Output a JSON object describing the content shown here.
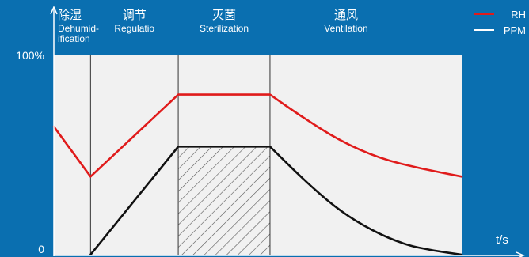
{
  "colors": {
    "background": "#0a6fb0",
    "plot_area": "#f1f1f1",
    "rh_line": "#e01b1b",
    "ppm_line": "#111111",
    "axis": "#ffffff",
    "divider": "#333333"
  },
  "chart_data": {
    "type": "line",
    "title": "",
    "xlabel": "t/s",
    "ylabel": "",
    "xlim": [
      0,
      100
    ],
    "ylim": [
      0,
      100
    ],
    "y_ticks": [
      "100%",
      "0"
    ],
    "grid": false,
    "legend_position": "top-right",
    "phases": [
      {
        "label_cn": "除湿",
        "label_en": [
          "Dehumid-",
          "ification"
        ],
        "start": 0,
        "end": 9
      },
      {
        "label_cn": "调节",
        "label_en": [
          "Regulatio"
        ],
        "start": 9,
        "end": 30.5
      },
      {
        "label_cn": "灭菌",
        "label_en": [
          "Sterilization"
        ],
        "start": 30.5,
        "end": 53
      },
      {
        "label_cn": "通风",
        "label_en": [
          "Ventilation"
        ],
        "start": 53,
        "end": 100
      }
    ],
    "divider_x": [
      9,
      30.5,
      53
    ],
    "hatched_range": [
      30.5,
      53
    ],
    "series": [
      {
        "name": "RH",
        "color": "#e01b1b",
        "x": [
          0,
          9,
          30.5,
          53,
          60,
          70,
          80,
          90,
          100
        ],
        "y": [
          64,
          39,
          80,
          80,
          70,
          57,
          48,
          43,
          39
        ]
      },
      {
        "name": "PPM",
        "color": "#111111",
        "x": [
          0,
          9,
          30.5,
          53,
          62,
          70,
          78,
          86,
          93,
          100
        ],
        "y": [
          null,
          0,
          54,
          54,
          36,
          22,
          12,
          5,
          2,
          0
        ]
      }
    ]
  }
}
